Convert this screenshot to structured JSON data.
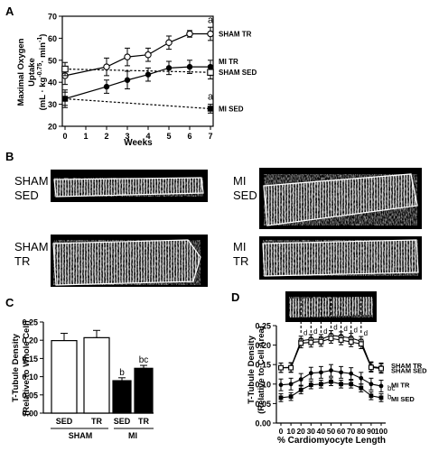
{
  "panels": {
    "A": "A",
    "B": "B",
    "C": "C",
    "D": "D"
  },
  "panel_b": {
    "labels": [
      {
        "line1": "SHAM",
        "line2": "SED"
      },
      {
        "line1": "MI",
        "line2": "SED"
      },
      {
        "line1": "SHAM",
        "line2": "TR"
      },
      {
        "line1": "MI",
        "line2": "TR"
      }
    ]
  },
  "chart_data": [
    {
      "panel": "A",
      "type": "line",
      "ylabel_lines": [
        "Maximal Oxygen",
        "Uptake"
      ],
      "ylabel_units": "(mL · kg",
      "ylabel_exp": "-0.75",
      "ylabel_tail": "· min",
      "ylabel_tail_exp": "-1",
      "ylabel_close": ")",
      "xlabel": "Weeks",
      "x": [
        0,
        1,
        2,
        3,
        4,
        5,
        6,
        7
      ],
      "ylim": [
        20,
        70
      ],
      "yticks": [
        20,
        30,
        40,
        50,
        60,
        70
      ],
      "series": [
        {
          "name": "SHAM TR",
          "marker": "open-circle",
          "dashed": false,
          "x": [
            0,
            2,
            3,
            4,
            5,
            6,
            7
          ],
          "values": [
            43,
            47,
            51.5,
            52.5,
            58,
            62,
            62
          ],
          "err": [
            4,
            4,
            4,
            3,
            3,
            1.5,
            3
          ]
        },
        {
          "name": "MI TR",
          "marker": "filled-circle",
          "dashed": false,
          "x": [
            0,
            2,
            3,
            4,
            5,
            6,
            7
          ],
          "values": [
            32.5,
            38,
            41,
            43.5,
            46.5,
            47,
            47
          ],
          "err": [
            4,
            3,
            4,
            3,
            3,
            3,
            3
          ]
        },
        {
          "name": "SHAM SED",
          "marker": "open-square",
          "dashed": true,
          "x": [
            0,
            7
          ],
          "values": [
            46,
            44.5
          ],
          "err": [
            3,
            3
          ]
        },
        {
          "name": "MI SED",
          "marker": "filled-square",
          "dashed": true,
          "x": [
            0,
            7
          ],
          "values": [
            32.5,
            28
          ],
          "err": [
            3,
            2
          ]
        }
      ],
      "annotations": [
        {
          "text": "a",
          "x": 7,
          "y": 67
        },
        {
          "text": "a",
          "x": 7,
          "y": 32
        }
      ]
    },
    {
      "panel": "C",
      "type": "bar",
      "ylabel_lines": [
        "T-Tubule Density",
        "(Relative to Whole Cell)"
      ],
      "ylim": [
        0,
        0.25
      ],
      "yticks": [
        "0.00",
        "0.05",
        "0.10",
        "0.15",
        "0.20",
        "0.25"
      ],
      "categories": [
        "SED",
        "TR",
        "SED",
        "TR"
      ],
      "groups": [
        "SHAM",
        "MI"
      ],
      "values": [
        0.199,
        0.207,
        0.089,
        0.123
      ],
      "err": [
        0.02,
        0.02,
        0.008,
        0.008
      ],
      "fills": [
        "#ffffff",
        "#ffffff",
        "#000000",
        "#000000"
      ],
      "annotations": [
        "",
        "",
        "b",
        "bc"
      ]
    },
    {
      "panel": "D",
      "type": "line",
      "ylabel_lines": [
        "T-Tubule Density",
        "(Relative to Cell Area)"
      ],
      "xlabel": "% Cardiomyocyte Length",
      "x": [
        0,
        10,
        20,
        30,
        40,
        50,
        60,
        70,
        80,
        90,
        100
      ],
      "ylim": [
        0,
        0.25
      ],
      "yticks": [
        "0.00",
        "0.05",
        "0.10",
        "0.15",
        "0.20",
        "0.25"
      ],
      "series": [
        {
          "name": "SHAM TR",
          "marker": "open-circle",
          "values": [
            0.142,
            0.143,
            0.211,
            0.215,
            0.215,
            0.225,
            0.222,
            0.218,
            0.21,
            0.145,
            0.142
          ],
          "err": 0.012
        },
        {
          "name": "SHAM SED",
          "marker": "open-square",
          "values": [
            0.142,
            0.142,
            0.205,
            0.207,
            0.209,
            0.217,
            0.213,
            0.208,
            0.203,
            0.143,
            0.14
          ],
          "err": 0.012
        },
        {
          "name": "MI TR",
          "marker": "filled-circle",
          "values": [
            0.098,
            0.1,
            0.112,
            0.128,
            0.13,
            0.135,
            0.13,
            0.127,
            0.115,
            0.1,
            0.095
          ],
          "err": 0.015
        },
        {
          "name": "MI SED",
          "marker": "filled-square",
          "values": [
            0.065,
            0.068,
            0.085,
            0.098,
            0.1,
            0.106,
            0.1,
            0.1,
            0.09,
            0.07,
            0.065
          ],
          "err": 0.01
        }
      ],
      "point_labels": [
        "d",
        "d",
        "d",
        "d",
        "d",
        "d",
        "d"
      ],
      "legend_labels": [
        "SHAM TR",
        "SHAM SED",
        "MI TR",
        "MI SED"
      ],
      "end_annotations": [
        "bc",
        "b"
      ]
    }
  ]
}
